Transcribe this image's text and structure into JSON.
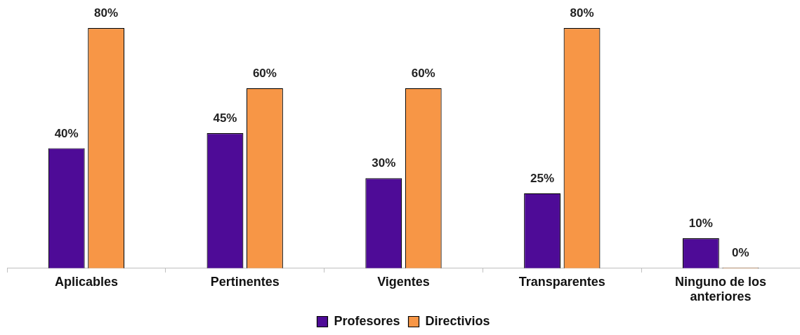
{
  "chart_data": {
    "type": "bar",
    "categories": [
      "Aplicables",
      "Pertinentes",
      "Vigentes",
      "Transparentes",
      "Ninguno de los anteriores"
    ],
    "series": [
      {
        "name": "Profesores",
        "color": "#4e0b97",
        "values": [
          40,
          45,
          30,
          25,
          10
        ],
        "value_labels": [
          "40%",
          "45%",
          "30%",
          "25%",
          "10%"
        ]
      },
      {
        "name": "Directivios",
        "color": "#f79646",
        "values": [
          80,
          60,
          60,
          80,
          0
        ],
        "value_labels": [
          "80%",
          "60%",
          "60%",
          "80%",
          "0%"
        ]
      }
    ],
    "legend": "bottom",
    "grid": false
  }
}
